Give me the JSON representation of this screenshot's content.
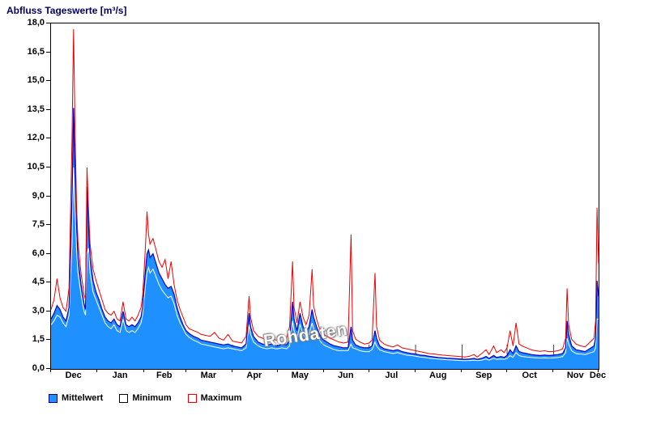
{
  "chart_data": {
    "type": "area",
    "title": "Abfluss Tageswerte [m³/s]",
    "watermark": "Rohdaten",
    "xlim": [
      0,
      365
    ],
    "ylim": [
      0,
      18
    ],
    "yticks": [
      0,
      1.5,
      3,
      4.5,
      6,
      7.5,
      9,
      10.5,
      12,
      13.5,
      15,
      16.5,
      18
    ],
    "ytick_labels": [
      "0,0",
      "1,5",
      "3,0",
      "4,5",
      "6,0",
      "7,5",
      "9,0",
      "10,5",
      "12,0",
      "13,5",
      "15,0",
      "16,5",
      "18,0"
    ],
    "x_months": [
      "Dec",
      "Jan",
      "Feb",
      "Mar",
      "Apr",
      "May",
      "Jun",
      "Jul",
      "Aug",
      "Sep",
      "Oct",
      "Nov",
      "Dec"
    ],
    "month_boundaries": [
      0,
      31,
      62,
      90,
      121,
      151,
      182,
      212,
      243,
      274,
      304,
      335,
      365
    ],
    "grid": "none",
    "legend_position": "bottom-left",
    "x": [
      0,
      2,
      4,
      6,
      8,
      10,
      12,
      14,
      15,
      16,
      17,
      18,
      20,
      22,
      23,
      24,
      25,
      26,
      28,
      30,
      32,
      34,
      36,
      38,
      40,
      42,
      44,
      46,
      48,
      50,
      52,
      54,
      56,
      58,
      60,
      61,
      62,
      63,
      64,
      65,
      66,
      68,
      70,
      72,
      74,
      76,
      78,
      80,
      82,
      84,
      86,
      88,
      90,
      92,
      95,
      98,
      100,
      103,
      106,
      109,
      112,
      115,
      118,
      121,
      124,
      127,
      130,
      132,
      133,
      135,
      138,
      141,
      144,
      147,
      150,
      151,
      154,
      157,
      159,
      161,
      162,
      164,
      166,
      168,
      170,
      172,
      174,
      175,
      177,
      179,
      181,
      183,
      186,
      189,
      192,
      195,
      198,
      200,
      201,
      203,
      206,
      209,
      212,
      214,
      216,
      217,
      219,
      222,
      225,
      228,
      231,
      234,
      237,
      240,
      243,
      246,
      249,
      252,
      255,
      258,
      261,
      264,
      267,
      270,
      273,
      276,
      279,
      282,
      284,
      287,
      290,
      292,
      295,
      297,
      300,
      302,
      304,
      306,
      308,
      310,
      312,
      314,
      317,
      320,
      323,
      326,
      329,
      332,
      335,
      338,
      341,
      343,
      344,
      345,
      347,
      350,
      353,
      356,
      358,
      360,
      362,
      363,
      364,
      365
    ],
    "series": [
      {
        "name": "Mittelwert",
        "style": "area",
        "fill": "#1e90ff",
        "line_color": "#0000cc",
        "values": [
          2.6,
          2.9,
          3.3,
          3.1,
          2.7,
          2.5,
          3.2,
          9.0,
          13.6,
          10.5,
          7.5,
          5.8,
          4.4,
          3.4,
          3.1,
          9.5,
          7.5,
          5.8,
          4.6,
          4.0,
          3.6,
          3.1,
          2.7,
          2.5,
          2.4,
          2.6,
          2.3,
          2.2,
          3.0,
          2.3,
          2.2,
          2.3,
          2.2,
          2.4,
          2.7,
          3.2,
          4.2,
          5.2,
          6.0,
          6.2,
          5.8,
          6.0,
          5.5,
          5.0,
          4.7,
          4.4,
          4.2,
          4.3,
          3.9,
          3.2,
          2.7,
          2.3,
          2.0,
          1.85,
          1.7,
          1.6,
          1.5,
          1.45,
          1.4,
          1.35,
          1.3,
          1.25,
          1.3,
          1.2,
          1.15,
          1.1,
          1.3,
          2.9,
          2.2,
          1.7,
          1.4,
          1.3,
          1.25,
          1.3,
          1.2,
          1.2,
          1.3,
          1.25,
          1.5,
          3.5,
          2.6,
          2.0,
          2.9,
          2.2,
          1.9,
          2.2,
          3.1,
          2.7,
          2.2,
          1.8,
          1.55,
          1.45,
          1.3,
          1.2,
          1.15,
          1.1,
          1.1,
          2.2,
          1.5,
          1.25,
          1.15,
          1.1,
          1.1,
          1.2,
          2.0,
          1.6,
          1.2,
          1.05,
          1.0,
          0.95,
          1.0,
          0.9,
          0.85,
          0.8,
          0.78,
          0.72,
          0.7,
          0.66,
          0.63,
          0.6,
          0.58,
          0.56,
          0.55,
          0.53,
          0.52,
          0.5,
          0.52,
          0.55,
          0.5,
          0.55,
          0.65,
          0.55,
          0.7,
          0.6,
          0.65,
          0.6,
          0.7,
          1.0,
          0.8,
          1.2,
          0.9,
          0.85,
          0.8,
          0.75,
          0.72,
          0.7,
          0.72,
          0.7,
          0.72,
          0.75,
          0.8,
          1.1,
          2.5,
          1.8,
          1.2,
          1.0,
          0.95,
          0.9,
          1.0,
          1.1,
          1.2,
          1.6,
          4.6,
          3.8
        ]
      },
      {
        "name": "Minimum",
        "style": "line",
        "color": "#ffffff",
        "values": [
          2.3,
          2.5,
          2.8,
          2.7,
          2.4,
          2.2,
          2.8,
          6.5,
          10.5,
          8.5,
          6.2,
          5.0,
          3.9,
          3.0,
          2.8,
          6.0,
          6.3,
          5.0,
          4.0,
          3.6,
          3.2,
          2.8,
          2.4,
          2.2,
          2.1,
          2.3,
          2.0,
          1.9,
          2.6,
          2.0,
          1.9,
          2.0,
          1.9,
          2.1,
          2.4,
          2.8,
          3.6,
          4.4,
          5.0,
          5.3,
          5.0,
          5.2,
          4.8,
          4.4,
          4.1,
          3.9,
          3.7,
          3.8,
          3.4,
          2.8,
          2.4,
          2.1,
          1.8,
          1.65,
          1.5,
          1.4,
          1.3,
          1.25,
          1.2,
          1.15,
          1.1,
          1.05,
          1.1,
          1.05,
          1.0,
          0.95,
          1.1,
          2.3,
          1.8,
          1.4,
          1.2,
          1.1,
          1.05,
          1.1,
          1.05,
          1.05,
          1.1,
          1.05,
          1.2,
          2.5,
          2.0,
          1.6,
          2.3,
          1.8,
          1.6,
          1.8,
          2.4,
          2.1,
          1.8,
          1.5,
          1.3,
          1.2,
          1.1,
          1.0,
          0.95,
          0.95,
          0.95,
          1.3,
          1.1,
          1.05,
          0.95,
          0.9,
          0.9,
          1.0,
          1.4,
          1.2,
          1.0,
          0.9,
          0.85,
          0.8,
          0.85,
          0.78,
          0.72,
          0.7,
          0.66,
          0.62,
          0.6,
          0.56,
          0.54,
          0.52,
          0.5,
          0.48,
          0.47,
          0.45,
          0.44,
          0.43,
          0.44,
          0.46,
          0.43,
          0.46,
          0.52,
          0.46,
          0.55,
          0.5,
          0.52,
          0.5,
          0.55,
          0.7,
          0.6,
          0.85,
          0.7,
          0.65,
          0.62,
          0.6,
          0.58,
          0.57,
          0.58,
          0.57,
          0.58,
          0.6,
          0.64,
          0.85,
          1.6,
          1.3,
          0.95,
          0.8,
          0.78,
          0.75,
          0.8,
          0.85,
          0.9,
          1.1,
          2.6,
          2.6
        ]
      },
      {
        "name": "Maximum",
        "style": "line",
        "color": "#ee0000",
        "values": [
          3.1,
          3.6,
          4.7,
          3.7,
          3.2,
          3.0,
          4.2,
          12.0,
          17.7,
          12.5,
          8.5,
          6.6,
          5.0,
          3.9,
          3.6,
          10.5,
          8.3,
          6.5,
          5.2,
          4.6,
          4.1,
          3.6,
          3.1,
          2.9,
          2.8,
          3.0,
          2.6,
          2.5,
          3.5,
          2.6,
          2.5,
          2.7,
          2.5,
          2.8,
          3.2,
          3.8,
          5.0,
          6.5,
          8.2,
          7.0,
          6.5,
          6.8,
          6.2,
          5.6,
          5.3,
          5.7,
          4.7,
          5.6,
          4.4,
          3.6,
          3.1,
          2.7,
          2.3,
          2.1,
          2.0,
          1.9,
          1.8,
          1.75,
          1.7,
          1.9,
          1.6,
          1.5,
          1.8,
          1.45,
          1.4,
          1.35,
          1.7,
          3.8,
          2.7,
          2.0,
          1.7,
          1.6,
          1.5,
          1.6,
          1.5,
          1.5,
          1.7,
          1.6,
          2.2,
          5.6,
          3.2,
          2.4,
          3.5,
          2.7,
          2.3,
          2.8,
          5.2,
          3.3,
          2.6,
          2.1,
          1.85,
          1.75,
          1.6,
          1.5,
          1.4,
          1.35,
          1.4,
          7.0,
          2.0,
          1.55,
          1.4,
          1.3,
          1.35,
          1.5,
          5.0,
          2.2,
          1.5,
          1.3,
          1.2,
          1.15,
          1.25,
          1.1,
          1.05,
          1.0,
          0.95,
          0.9,
          0.85,
          0.8,
          0.78,
          0.75,
          0.72,
          0.7,
          0.68,
          0.66,
          0.64,
          0.62,
          0.66,
          0.75,
          0.62,
          0.8,
          1.0,
          0.75,
          1.2,
          0.85,
          1.0,
          0.85,
          1.1,
          2.0,
          1.2,
          2.4,
          1.3,
          1.2,
          1.1,
          1.0,
          0.95,
          0.92,
          0.95,
          0.9,
          0.92,
          0.95,
          1.05,
          1.6,
          4.2,
          2.3,
          1.55,
          1.3,
          1.2,
          1.15,
          1.3,
          1.45,
          1.6,
          2.5,
          8.4,
          5.5
        ]
      }
    ],
    "legend": [
      {
        "label": "Mittelwert",
        "swatch_fill": "#1e90ff",
        "swatch_border": "#00008b"
      },
      {
        "label": "Minimum",
        "swatch_fill": "#ffffff",
        "swatch_border": "#000000"
      },
      {
        "label": "Maximum",
        "swatch_fill": "#ffffff",
        "swatch_border": "#ee0000"
      }
    ],
    "colors": {
      "mean_fill": "#1e90ff",
      "mean_line": "#0000cc",
      "min_line": "#ffffff",
      "max_line": "#ee0000",
      "title": "#000066"
    }
  }
}
